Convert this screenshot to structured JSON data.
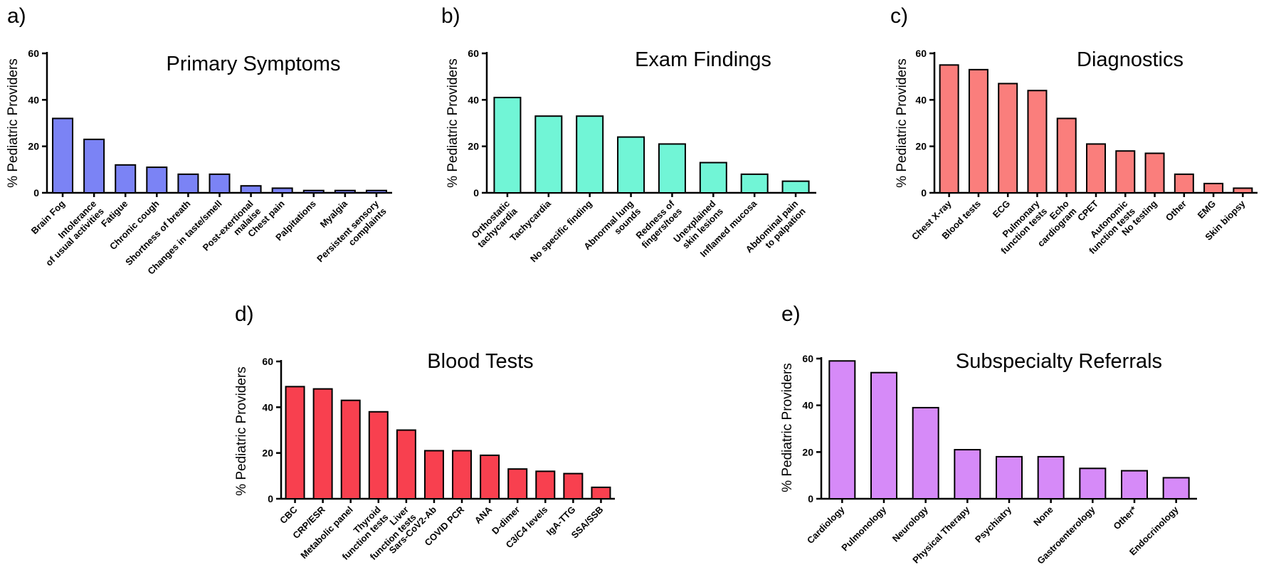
{
  "charts": [
    {
      "panel": "a)",
      "type": "bar",
      "title": "Primary Symptoms",
      "ylabel": "% Pediatric Providers",
      "xlabel": "",
      "ylim": [
        0,
        60
      ],
      "yticks": [
        0,
        20,
        40,
        60
      ],
      "color": "#7b83f5",
      "categories": [
        "Brain Fog",
        "Intolerance\nof usual activities",
        "Fatigue",
        "Chronic cough",
        "Shortness of breath",
        "Changes in taste/smell",
        "Post-exertional\nmalaise",
        "Chest pain",
        "Palpitations",
        "Myalgia",
        "Persistent sensory\ncomplaints"
      ],
      "values": [
        32,
        23,
        12,
        11,
        8,
        8,
        3,
        2,
        1,
        1,
        1
      ]
    },
    {
      "panel": "b)",
      "type": "bar",
      "title": "Exam Findings",
      "ylabel": "% Pediatric Providers",
      "xlabel": "",
      "ylim": [
        0,
        60
      ],
      "yticks": [
        0,
        20,
        40,
        60
      ],
      "color": "#71f5d6",
      "categories": [
        "Orthostatic\ntachycardia",
        "Tachycardia",
        "No specific finding",
        "Abnormal lung\nsounds",
        "Redness of\nfingers/toes",
        "Unexplained\nskin lesions",
        "Inflamed mucosa",
        "Abdominal pain\nto palpation"
      ],
      "values": [
        41,
        33,
        33,
        24,
        21,
        13,
        8,
        5
      ]
    },
    {
      "panel": "c)",
      "type": "bar",
      "title": "Diagnostics",
      "ylabel": "% Pediatric Providers",
      "xlabel": "",
      "ylim": [
        0,
        60
      ],
      "yticks": [
        0,
        20,
        40,
        60
      ],
      "color": "#fa7e7c",
      "categories": [
        "Chest X-ray",
        "Blood tests",
        "ECG",
        "Pulmonary\nfunction tests",
        "Echo\ncardiogram",
        "CPET",
        "Autonomic\nfunction tests",
        "No testing",
        "Other",
        "EMG",
        "Skin biopsy"
      ],
      "values": [
        55,
        53,
        47,
        44,
        32,
        21,
        18,
        17,
        8,
        4,
        2
      ]
    },
    {
      "panel": "d)",
      "type": "bar",
      "title": "Blood Tests",
      "ylabel": "% Pediatric Providers",
      "xlabel": "",
      "ylim": [
        0,
        60
      ],
      "yticks": [
        0,
        20,
        40,
        60
      ],
      "color": "#f8404f",
      "categories": [
        "CBC",
        "CRP/ESR",
        "Metabolic panel",
        "Thyroid\nfunction tests",
        "Liver\nfunction tests",
        "Sars-CoV2-Ab",
        "COVID PCR",
        "ANA",
        "D-dimer",
        "C3/C4 levels",
        "IgA-TTG",
        "SSA/SSB"
      ],
      "values": [
        49,
        48,
        43,
        38,
        30,
        21,
        21,
        19,
        13,
        12,
        11,
        5
      ]
    },
    {
      "panel": "e)",
      "type": "bar",
      "title": "Subspecialty Referrals",
      "ylabel": "% Pediatric Providers",
      "xlabel": "",
      "ylim": [
        0,
        60
      ],
      "yticks": [
        0,
        20,
        40,
        60
      ],
      "color": "#d68af8",
      "categories": [
        "Cardiology",
        "Pulmonology",
        "Neurology",
        "Physical Therapy",
        "Psychiatry",
        "None",
        "Gastroenterology",
        "Other*",
        "Endocrinology"
      ],
      "values": [
        59,
        54,
        39,
        21,
        18,
        18,
        13,
        12,
        9
      ]
    }
  ]
}
